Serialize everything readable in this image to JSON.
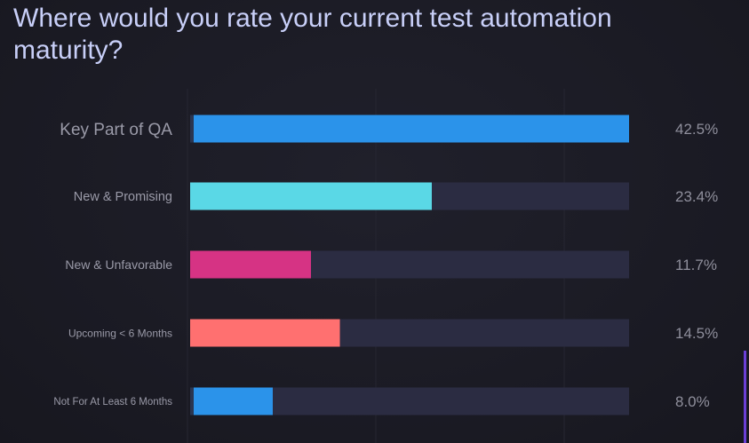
{
  "title": "Where would you rate your current test automation maturity?",
  "chart_data": {
    "type": "bar",
    "orientation": "horizontal",
    "title": "Where would you rate your current test automation maturity?",
    "categories": [
      "Key Part of QA",
      "New & Promising",
      "New & Unfavorable",
      "Upcoming < 6 Months",
      "Not For At Least 6 Months"
    ],
    "values": [
      42.5,
      23.4,
      11.7,
      14.5,
      8.0
    ],
    "value_labels": [
      "42.5%",
      "23.4%",
      "11.7%",
      "14.5%",
      "8.0%"
    ],
    "xlim": [
      0,
      42.5
    ],
    "grid": true,
    "legend": "none"
  },
  "colors": {
    "bars": [
      "#2b93ea",
      "#5ad8e6",
      "#d63384",
      "#ff7070",
      "#2b93ea"
    ],
    "track": "#2b2c42",
    "label": "#9a9aa8",
    "value": "#8f8f9c",
    "gridline": "#262631"
  }
}
